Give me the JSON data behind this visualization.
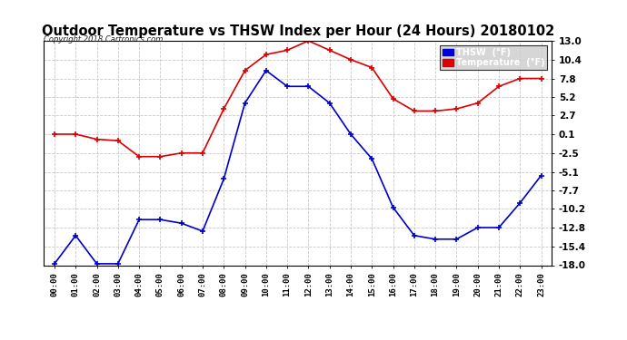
{
  "title": "Outdoor Temperature vs THSW Index per Hour (24 Hours) 20180102",
  "copyright": "Copyright 2018 Cartronics.com",
  "hours": [
    "00:00",
    "01:00",
    "02:00",
    "03:00",
    "04:00",
    "05:00",
    "06:00",
    "07:00",
    "08:00",
    "09:00",
    "10:00",
    "11:00",
    "12:00",
    "13:00",
    "14:00",
    "15:00",
    "16:00",
    "17:00",
    "18:00",
    "19:00",
    "20:00",
    "21:00",
    "22:00",
    "23:00"
  ],
  "temperature": [
    0.1,
    0.1,
    -0.6,
    -0.8,
    -3.0,
    -3.0,
    -2.5,
    -2.5,
    3.6,
    8.9,
    11.1,
    11.7,
    13.0,
    11.7,
    10.4,
    9.3,
    5.0,
    3.3,
    3.3,
    3.6,
    4.4,
    6.7,
    7.8,
    7.8
  ],
  "thsw": [
    -17.8,
    -13.9,
    -17.8,
    -17.8,
    -11.7,
    -11.7,
    -12.2,
    -13.3,
    -6.1,
    4.4,
    8.9,
    6.7,
    6.7,
    4.4,
    0.1,
    -3.3,
    -10.0,
    -13.9,
    -14.4,
    -14.4,
    -12.8,
    -12.8,
    -9.4,
    -5.6
  ],
  "ylim": [
    -18.0,
    13.0
  ],
  "yticks": [
    13.0,
    10.4,
    7.8,
    5.2,
    2.7,
    0.1,
    -2.5,
    -5.1,
    -7.7,
    -10.2,
    -12.8,
    -15.4,
    -18.0
  ],
  "temp_color": "#dd0000",
  "thsw_color": "#0000cc",
  "background_color": "#ffffff",
  "plot_bg_color": "#ffffff",
  "grid_color": "#bbbbbb",
  "title_fontsize": 10.5,
  "legend_thsw_bg": "#0000dd",
  "legend_temp_bg": "#dd0000"
}
